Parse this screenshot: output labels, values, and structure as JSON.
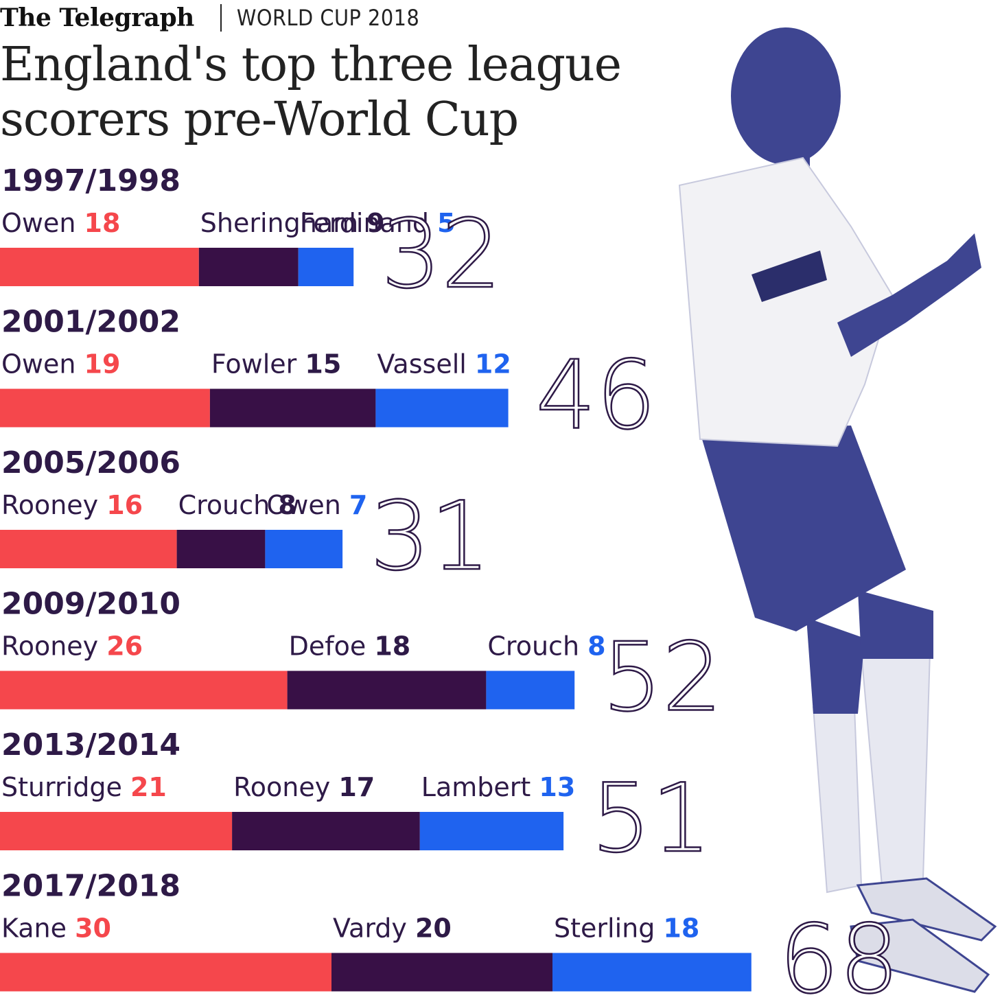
{
  "header": {
    "brand": "The Telegraph",
    "section": "WORLD CUP 2018",
    "title_line1": "England's top three league",
    "title_line2": "scorers pre-World Cup"
  },
  "colors": {
    "first": "#f5474c",
    "second": "#381046",
    "third": "#1f63ef",
    "text": "#2e1a47"
  },
  "chart_data": {
    "type": "bar",
    "orientation": "horizontal-stacked",
    "series": [
      {
        "name": "",
        "rank": 1
      },
      {
        "name": "",
        "rank": 2
      },
      {
        "name": "",
        "rank": 3
      }
    ],
    "seasons": [
      {
        "season": "1997/1998",
        "total": 32,
        "players": [
          {
            "name": "Owen",
            "goals": 18
          },
          {
            "name": "Sheringham",
            "goals": 9
          },
          {
            "name": "Ferdinand",
            "goals": 5
          }
        ]
      },
      {
        "season": "2001/2002",
        "total": 46,
        "players": [
          {
            "name": "Owen",
            "goals": 19
          },
          {
            "name": "Fowler",
            "goals": 15
          },
          {
            "name": "Vassell",
            "goals": 12
          }
        ]
      },
      {
        "season": "2005/2006",
        "total": 31,
        "players": [
          {
            "name": "Rooney",
            "goals": 16
          },
          {
            "name": "Crouch",
            "goals": 8
          },
          {
            "name": "Owen",
            "goals": 7
          }
        ]
      },
      {
        "season": "2009/2010",
        "total": 52,
        "players": [
          {
            "name": "Rooney",
            "goals": 26
          },
          {
            "name": "Defoe",
            "goals": 18
          },
          {
            "name": "Crouch",
            "goals": 8
          }
        ]
      },
      {
        "season": "2013/2014",
        "total": 51,
        "players": [
          {
            "name": "Sturridge",
            "goals": 21
          },
          {
            "name": "Rooney",
            "goals": 17
          },
          {
            "name": "Lambert",
            "goals": 13
          }
        ]
      },
      {
        "season": "2017/2018",
        "total": 68,
        "players": [
          {
            "name": "Kane",
            "goals": 30
          },
          {
            "name": "Vardy",
            "goals": 20
          },
          {
            "name": "Sterling",
            "goals": 18
          }
        ]
      }
    ]
  }
}
